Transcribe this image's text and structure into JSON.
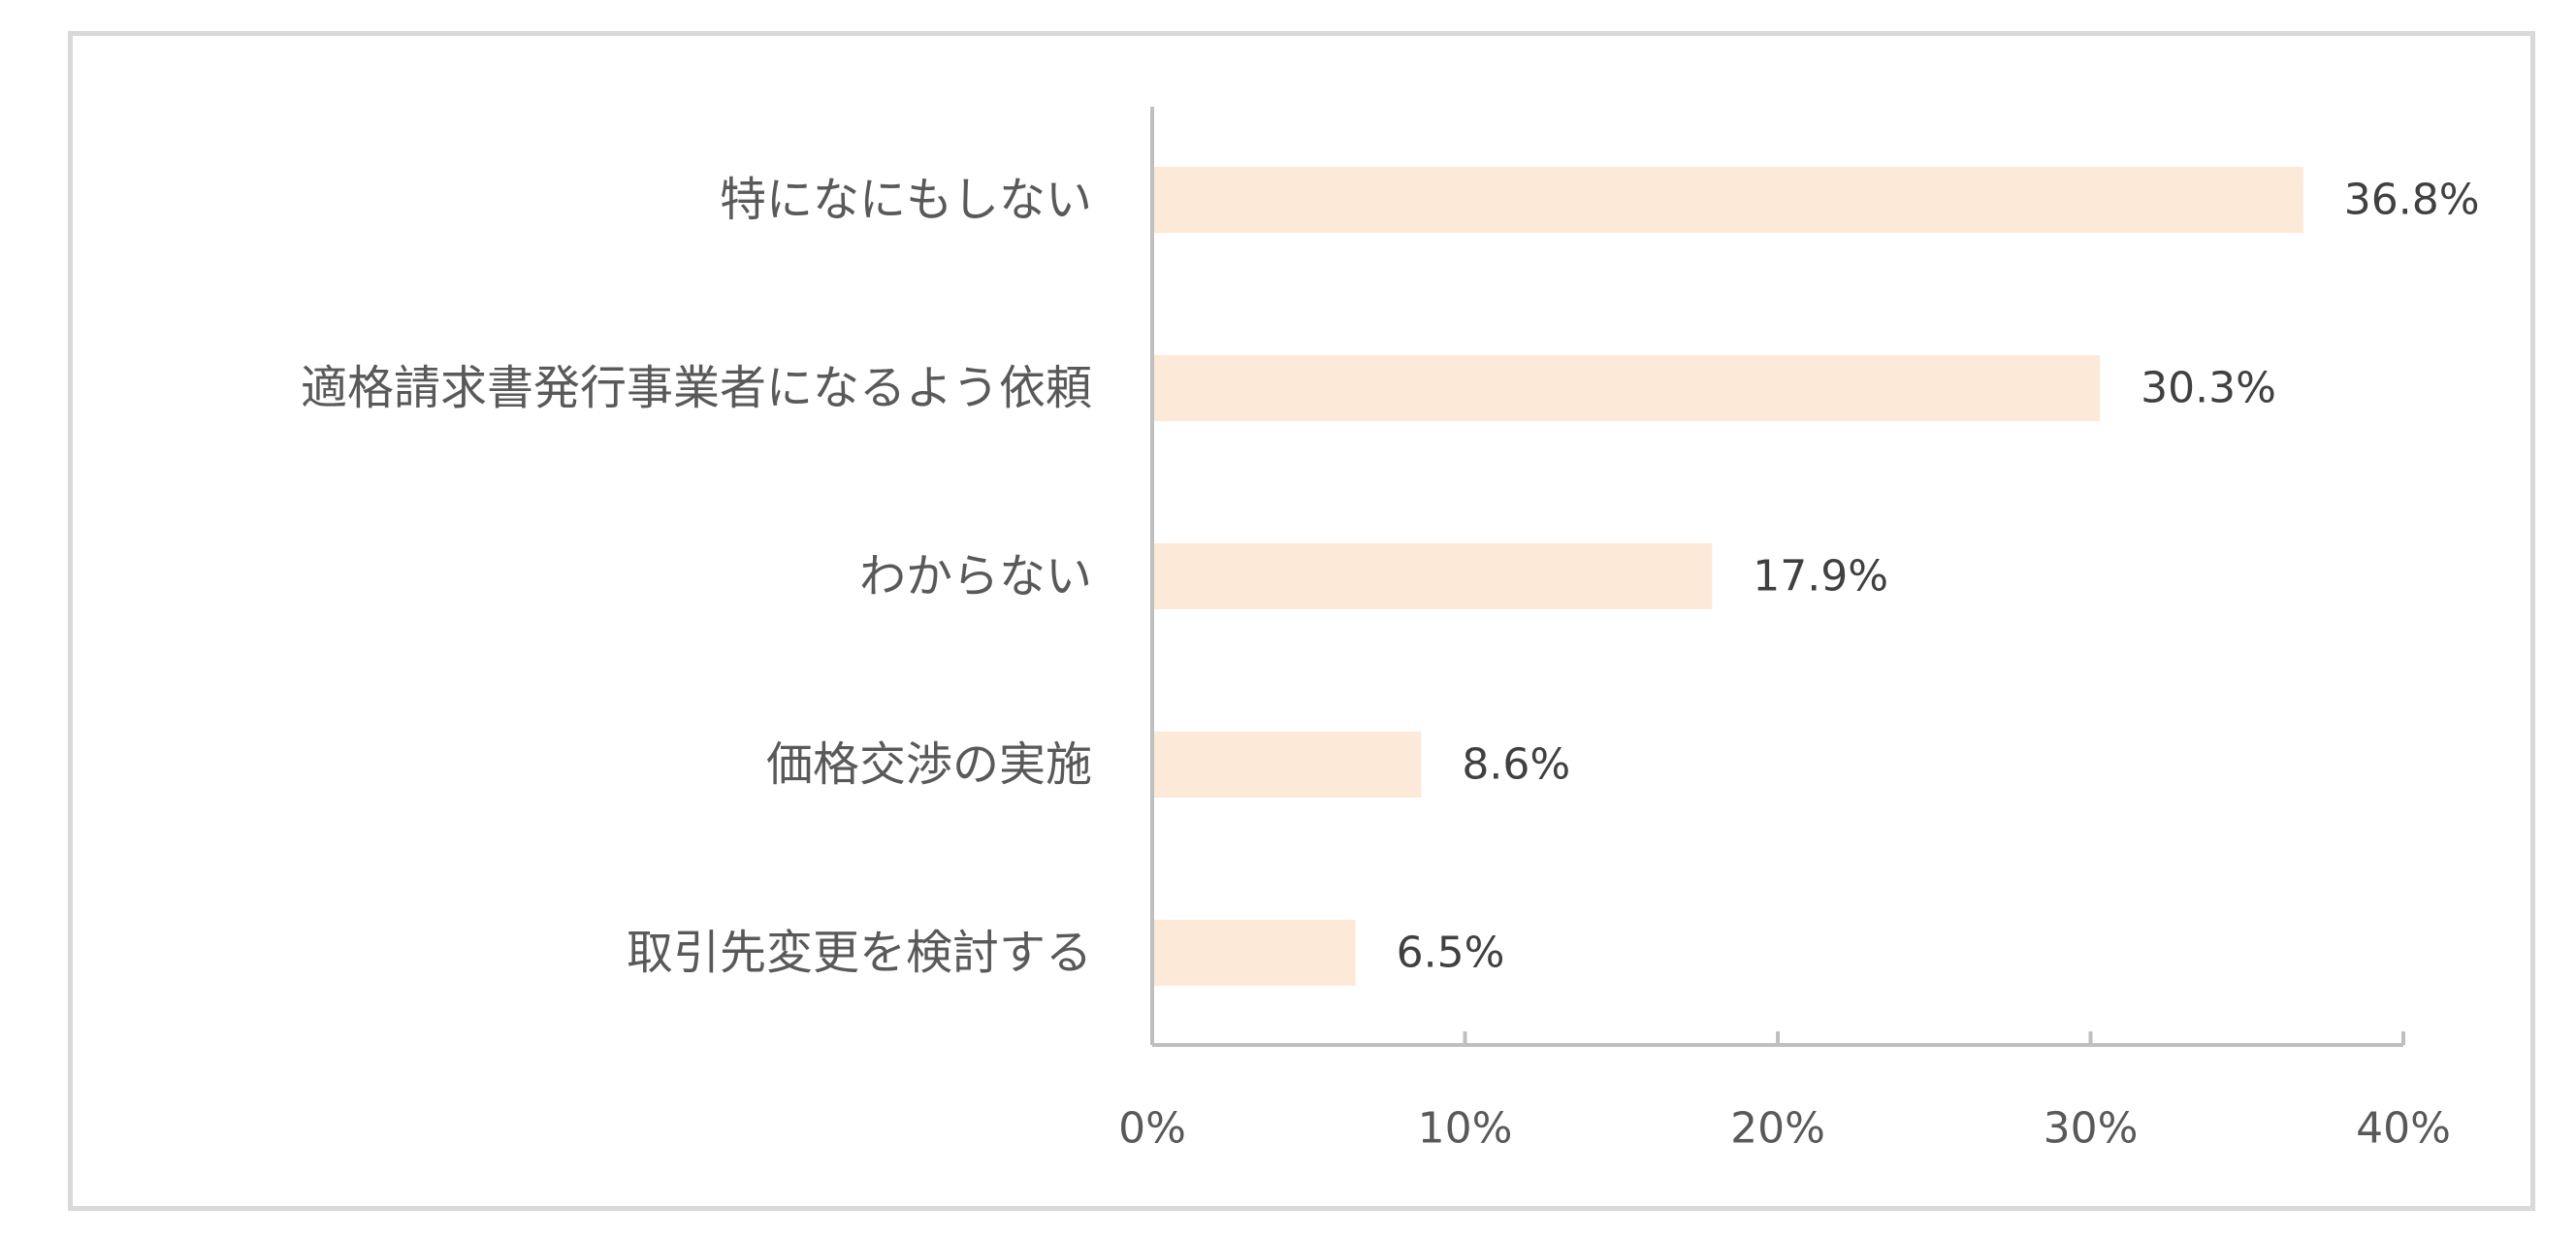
{
  "chart_data": {
    "type": "bar",
    "orientation": "horizontal",
    "categories": [
      "特になにもしない",
      "適格請求書発行事業者になるよう依頼",
      "わからない",
      "価格交渉の実施",
      "取引先変更を検討する"
    ],
    "values": [
      36.8,
      30.3,
      17.9,
      8.6,
      6.5
    ],
    "value_labels": [
      "36.8%",
      "30.3%",
      "17.9%",
      "8.6%",
      "6.5%"
    ],
    "xlim": [
      0,
      40
    ],
    "x_ticks": [
      0,
      10,
      20,
      30,
      40
    ],
    "x_tick_labels": [
      "0%",
      "10%",
      "20%",
      "30%",
      "40%"
    ],
    "title": "",
    "xlabel": "",
    "ylabel": "",
    "grid": false,
    "legend": "none",
    "colors": {
      "bar": "#fce9d8",
      "axis": "#bfbfbf",
      "frame": "#d9d9d9"
    }
  }
}
